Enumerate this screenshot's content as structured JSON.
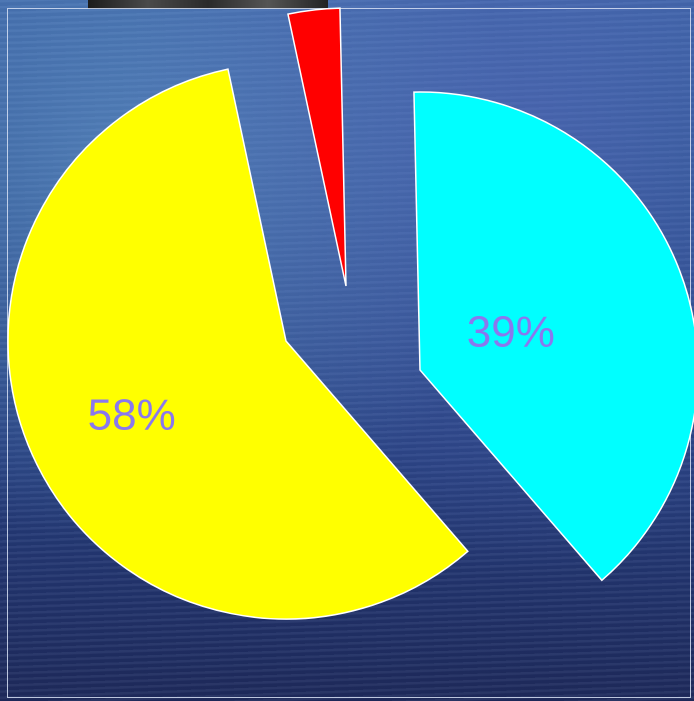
{
  "chart_data": {
    "type": "pie",
    "slices": [
      {
        "label": "39%",
        "value": 39,
        "color": "#00ffff"
      },
      {
        "label": "58%",
        "value": 58,
        "color": "#ffff00"
      },
      {
        "label": "",
        "value": 3,
        "color": "#ff0000"
      }
    ],
    "title": "",
    "legend": "none"
  }
}
